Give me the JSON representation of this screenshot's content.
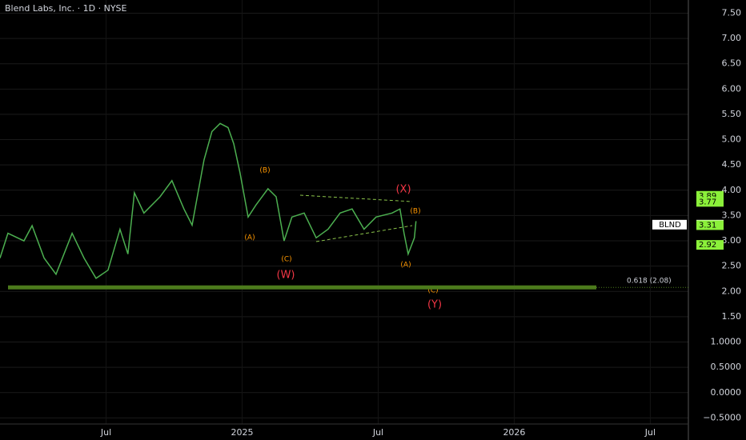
{
  "chart_data": {
    "type": "line",
    "title": "Blend Labs, Inc. · 1D · NYSE",
    "x": [
      2024.11,
      2024.139,
      2024.198,
      2024.228,
      2024.272,
      2024.316,
      2024.375,
      2024.419,
      2024.463,
      2024.507,
      2024.551,
      2024.58,
      2024.604,
      2024.639,
      2024.698,
      2024.742,
      2024.786,
      2024.816,
      2024.86,
      2024.889,
      2024.919,
      2024.948,
      2024.969,
      2024.992,
      2025.022,
      2025.051,
      2025.095,
      2025.125,
      2025.154,
      2025.183,
      2025.228,
      2025.272,
      2025.316,
      2025.36,
      2025.404,
      2025.448,
      2025.492,
      2025.551,
      2025.58,
      2025.595,
      2025.61,
      2025.633,
      2025.639
    ],
    "series": [
      {
        "name": "BLND",
        "color": "#4caf50",
        "values": [
          2.66,
          3.15,
          3.0,
          3.3,
          2.66,
          2.34,
          3.15,
          2.66,
          2.26,
          2.42,
          3.23,
          2.74,
          3.95,
          3.55,
          3.87,
          4.19,
          3.63,
          3.31,
          4.6,
          5.16,
          5.32,
          5.24,
          4.92,
          4.35,
          3.47,
          3.71,
          4.03,
          3.87,
          3.0,
          3.47,
          3.55,
          3.06,
          3.23,
          3.55,
          3.63,
          3.23,
          3.47,
          3.55,
          3.63,
          3.15,
          2.74,
          3.06,
          3.39
        ]
      }
    ],
    "xlim": [
      2024.11,
      2026.64
    ],
    "xticks": [
      {
        "value": 2024.5,
        "label": "Jul"
      },
      2025,
      {
        "value": 2025.5,
        "label": "Jul"
      },
      2026,
      {
        "value": 2026.5,
        "label": "Jul"
      }
    ],
    "ylim": [
      -0.62,
      7.76
    ],
    "yticks": [
      {
        "value": 7.5,
        "label": "7.50"
      },
      {
        "value": 7,
        "label": "7.00"
      },
      {
        "value": 6.5,
        "label": "6.50"
      },
      {
        "value": 6,
        "label": "6.00"
      },
      {
        "value": 5.5,
        "label": "5.50"
      },
      {
        "value": 5,
        "label": "5.00"
      },
      {
        "value": 4.5,
        "label": "4.50"
      },
      {
        "value": 4,
        "label": "4.00"
      },
      {
        "value": 3.5,
        "label": "3.50"
      },
      {
        "value": 3,
        "label": "3.00"
      },
      {
        "value": 2.5,
        "label": "2.50"
      },
      {
        "value": 2,
        "label": "2.00"
      },
      {
        "value": 1.5,
        "label": "1.50"
      },
      {
        "value": 1,
        "label": "1.0000"
      },
      {
        "value": 0.5,
        "label": "0.5000"
      },
      {
        "value": 0,
        "label": "0.0000"
      },
      {
        "value": -0.5,
        "label": "−0.5000"
      }
    ],
    "grid": true,
    "fib_level": {
      "value": 2.08,
      "label": "0.618 (2.08)",
      "color": "#4c7a1c"
    },
    "price_tags": [
      {
        "value": 3.89,
        "color": "#8bf03a"
      },
      {
        "value": 3.77,
        "color": "#8bf03a"
      },
      {
        "value": 3.32,
        "label": "BLND",
        "color": "#ffffff"
      },
      {
        "value": 3.31,
        "color": "#8bf03a"
      },
      {
        "value": 2.92,
        "color": "#8bf03a"
      }
    ],
    "annotations": [
      "(B)",
      "(A)",
      "(C)",
      "(W)",
      "(X)",
      "(B)",
      "(A)",
      "(C)",
      "(Y)"
    ]
  }
}
